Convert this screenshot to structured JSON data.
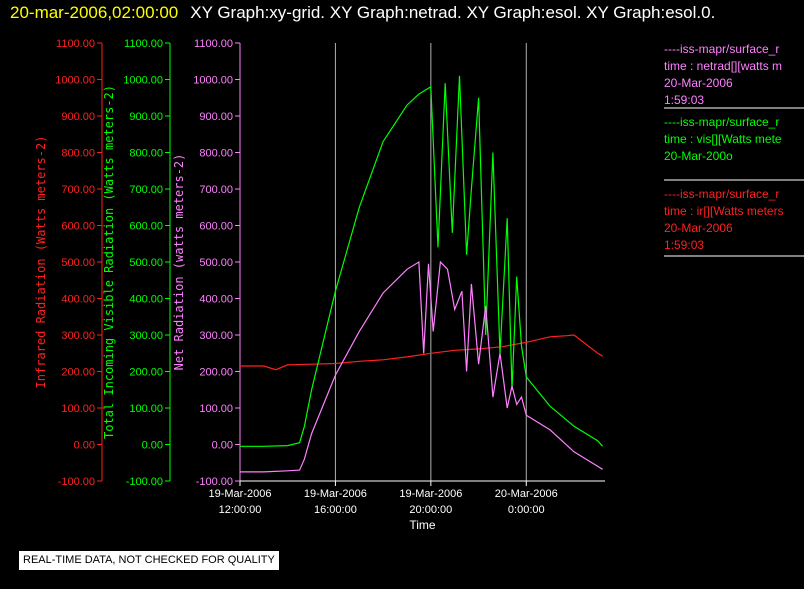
{
  "header": {
    "datetime": "20-mar-2006,02:00:00",
    "graphs": "XY Graph:xy-grid.  XY Graph:netrad.  XY Graph:esol.  XY Graph:esol.0."
  },
  "legend": [
    {
      "line1": "----iss-mapr/surface_r",
      "line2": "time : netrad[][watts m",
      "line3": "20-Mar-2006",
      "line4": "1:59:03",
      "color": "#ff80ff"
    },
    {
      "line1": "----iss-mapr/surface_r",
      "line2": "time : vis[][Watts mete",
      "line3": "20-Mar-200o",
      "line4": "",
      "color": "#00ff00"
    },
    {
      "line1": "----iss-mapr/surface_r",
      "line2": "time : ir[][Watts meters",
      "line3": "20-Mar-2006",
      "line4": "1:59:03",
      "color": "#ff2020"
    }
  ],
  "footer": {
    "note": "REAL-TIME DATA, NOT CHECKED FOR QUALITY"
  },
  "chart_data": {
    "type": "line",
    "xlabel": "Time",
    "x_ticks": [
      {
        "line1": "19-Mar-2006",
        "line2": "12:00:00"
      },
      {
        "line1": "19-Mar-2006",
        "line2": "16:00:00"
      },
      {
        "line1": "19-Mar-2006",
        "line2": "20:00:00"
      },
      {
        "line1": "20-Mar-2006",
        "line2": "0:00:00"
      }
    ],
    "x_range_hours": [
      12,
      27.3
    ],
    "grid_x_hours": [
      16,
      20,
      24
    ],
    "y_ticks": [
      "-100.00",
      "0.00",
      "100.00",
      "200.00",
      "300.00",
      "400.00",
      "500.00",
      "600.00",
      "700.00",
      "800.00",
      "900.00",
      "1000.00",
      "1100.00"
    ],
    "ylim": [
      -100,
      1100
    ],
    "axes": [
      {
        "label": "Infrared Radiation (Watts meters-2)",
        "color": "#ff2020"
      },
      {
        "label": "Total Incoming Visible Radiation (Watts meters-2)",
        "color": "#00ff00"
      },
      {
        "label": "Net Radiation (watts meters-2)",
        "color": "#ff80ff"
      }
    ],
    "series": [
      {
        "name": "ir",
        "color": "#ff2020",
        "x": [
          12.0,
          13.0,
          13.5,
          14.0,
          15.0,
          16.0,
          17.0,
          18.0,
          19.0,
          20.0,
          21.0,
          22.0,
          22.5,
          23.0,
          24.0,
          25.0,
          25.7,
          26.0,
          26.5,
          27.0,
          27.2
        ],
        "y": [
          215,
          215,
          205,
          218,
          220,
          222,
          228,
          232,
          240,
          250,
          258,
          262,
          265,
          268,
          280,
          295,
          298,
          300,
          275,
          250,
          242
        ]
      },
      {
        "name": "vis",
        "color": "#00ff00",
        "x": [
          12.0,
          13.0,
          14.0,
          14.5,
          14.7,
          15.0,
          16.0,
          17.0,
          18.0,
          19.0,
          19.5,
          20.0,
          20.3,
          20.6,
          20.9,
          21.2,
          21.5,
          21.7,
          22.0,
          22.3,
          22.6,
          22.9,
          23.2,
          23.4,
          23.6,
          23.8,
          24.0,
          25.0,
          26.0,
          27.0,
          27.2
        ],
        "y": [
          -5,
          -5,
          -3,
          5,
          50,
          150,
          420,
          650,
          830,
          930,
          960,
          980,
          540,
          990,
          580,
          1010,
          520,
          700,
          950,
          300,
          800,
          250,
          620,
          150,
          460,
          270,
          185,
          105,
          50,
          10,
          -5
        ]
      },
      {
        "name": "netrad",
        "color": "#ff80ff",
        "x": [
          12.0,
          13.0,
          14.0,
          14.5,
          14.7,
          15.0,
          16.0,
          17.0,
          18.0,
          19.0,
          19.5,
          19.7,
          19.9,
          20.1,
          20.4,
          20.7,
          21.0,
          21.3,
          21.5,
          21.7,
          22.0,
          22.3,
          22.6,
          22.9,
          23.2,
          23.4,
          23.6,
          23.8,
          24.0,
          25.0,
          26.0,
          27.0,
          27.2
        ],
        "y": [
          -75,
          -75,
          -72,
          -70,
          -40,
          30,
          190,
          310,
          415,
          480,
          500,
          250,
          495,
          310,
          500,
          480,
          370,
          420,
          200,
          440,
          220,
          380,
          130,
          250,
          100,
          160,
          110,
          130,
          80,
          40,
          -20,
          -60,
          -68
        ]
      }
    ]
  }
}
